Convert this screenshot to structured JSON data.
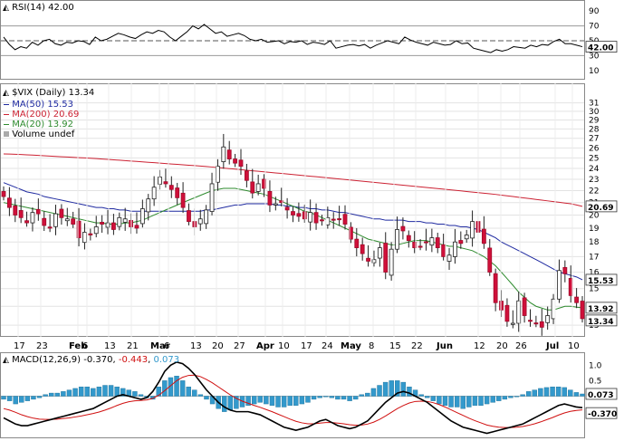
{
  "chart_data": [
    {
      "type": "line",
      "panel": "indicator",
      "label": "RSI(14)",
      "value": "42.00",
      "y_ticks": [
        90,
        70,
        50,
        30,
        10
      ],
      "reference_lines": [
        70,
        50,
        30
      ],
      "ylim": [
        0,
        100
      ],
      "series": [
        {
          "name": "RSI(14)",
          "color": "#000000",
          "values": [
            55,
            45,
            38,
            42,
            40,
            48,
            44,
            50,
            52,
            46,
            44,
            48,
            47,
            50,
            49,
            45,
            55,
            50,
            52,
            56,
            60,
            58,
            55,
            53,
            58,
            62,
            60,
            64,
            62,
            55,
            50,
            56,
            62,
            70,
            66,
            72,
            66,
            60,
            62,
            56,
            58,
            60,
            57,
            52,
            50,
            52,
            48,
            49,
            50,
            46,
            49,
            48,
            50,
            45,
            48,
            47,
            45,
            50,
            40,
            42,
            44,
            45,
            43,
            45,
            40,
            44,
            47,
            50,
            48,
            46,
            55,
            51,
            48,
            46,
            44,
            48,
            46,
            44,
            45,
            50,
            46,
            47,
            40,
            38,
            36,
            34,
            38,
            36,
            38,
            42,
            41,
            40,
            44,
            42,
            45,
            44,
            49,
            52,
            46,
            46,
            44,
            42
          ]
        }
      ]
    },
    {
      "type": "candlestick",
      "panel": "price",
      "label": "$VIX (Daily)",
      "last": "13.34",
      "y_scale": "log",
      "y_ticks": [
        31,
        30,
        29,
        28,
        27,
        26,
        25,
        24,
        23,
        22,
        21,
        20,
        19,
        18,
        17,
        16,
        15,
        14,
        13
      ],
      "ylim": [
        12.6,
        33
      ],
      "x_tick_labels": [
        "17",
        "23",
        "Feb",
        "6",
        "13",
        "21",
        "Mar",
        "6",
        "13",
        "20",
        "27",
        "Apr",
        "10",
        "17",
        "24",
        "May",
        "8",
        "15",
        "22",
        "Jun",
        "12",
        "20",
        "26",
        "Jul",
        "10"
      ],
      "overlays": [
        {
          "name": "MA(50)",
          "value": "15.53",
          "color": "#1f2aa0",
          "badge": "15.53"
        },
        {
          "name": "MA(200)",
          "value": "20.69",
          "color": "#cc2233",
          "badge": "20.69"
        },
        {
          "name": "MA(20)",
          "value": "13.92",
          "color": "#2e8b2e",
          "badge": "13.92"
        }
      ],
      "volume_legend": "Volume undef",
      "close_badge": "13.34",
      "close": [
        21.5,
        20.6,
        20.0,
        19.8,
        19.4,
        20.2,
        20.1,
        19.2,
        19.0,
        20.1,
        19.8,
        19.7,
        19.3,
        18.3,
        18.7,
        18.5,
        19.1,
        19.3,
        19.4,
        18.9,
        19.8,
        19.7,
        19.1,
        19.0,
        20.5,
        21.3,
        22.3,
        23.2,
        22.6,
        22.1,
        21.4,
        20.6,
        19.5,
        19.1,
        19.7,
        20.4,
        22.6,
        24.2,
        26.1,
        24.9,
        24.5,
        24.2,
        22.9,
        21.8,
        22.6,
        22.2,
        20.8,
        20.9,
        21.0,
        20.4,
        20.0,
        19.9,
        19.7,
        20.2,
        19.4,
        19.6,
        19.8,
        19.6,
        19.7,
        19.3,
        18.2,
        17.6,
        17.2,
        16.7,
        16.8,
        17.6,
        16.0,
        17.5,
        18.9,
        18.8,
        18.1,
        17.6,
        17.7,
        18.0,
        18.3,
        17.6,
        17.0,
        17.1,
        18.0,
        17.9,
        18.5,
        19.5,
        18.7,
        17.9,
        16.0,
        14.2,
        13.8,
        13.2,
        13.1,
        14.3,
        13.5,
        13.2,
        13.1,
        12.9,
        13.5,
        14.4,
        16.1,
        15.9,
        14.6,
        14.2,
        13.34
      ],
      "ma50": [
        22.7,
        22.5,
        22.3,
        22.1,
        21.9,
        21.8,
        21.7,
        21.5,
        21.4,
        21.3,
        21.2,
        21.1,
        21.0,
        20.9,
        20.8,
        20.7,
        20.6,
        20.6,
        20.5,
        20.5,
        20.4,
        20.4,
        20.3,
        20.3,
        20.3,
        20.3,
        20.3,
        20.3,
        20.3,
        20.3,
        20.3,
        20.3,
        20.3,
        20.3,
        20.3,
        20.4,
        20.4,
        20.5,
        20.6,
        20.7,
        20.8,
        20.8,
        20.9,
        20.9,
        20.9,
        20.9,
        20.9,
        20.8,
        20.8,
        20.7,
        20.7,
        20.6,
        20.6,
        20.5,
        20.5,
        20.4,
        20.4,
        20.3,
        20.2,
        20.2,
        20.1,
        20.0,
        19.9,
        19.8,
        19.7,
        19.7,
        19.6,
        19.6,
        19.6,
        19.6,
        19.5,
        19.5,
        19.5,
        19.4,
        19.4,
        19.3,
        19.3,
        19.2,
        19.2,
        19.1,
        19.1,
        19.0,
        18.9,
        18.7,
        18.5,
        18.3,
        18.0,
        17.8,
        17.6,
        17.4,
        17.2,
        17.0,
        16.8,
        16.6,
        16.4,
        16.2,
        16.0,
        15.9,
        15.8,
        15.7,
        15.53
      ],
      "ma200": [
        25.4,
        25.38,
        25.36,
        25.34,
        25.31,
        25.28,
        25.25,
        25.22,
        25.18,
        25.15,
        25.12,
        25.09,
        25.06,
        25.03,
        25.0,
        24.97,
        24.94,
        24.9,
        24.86,
        24.82,
        24.78,
        24.74,
        24.7,
        24.66,
        24.62,
        24.58,
        24.54,
        24.5,
        24.46,
        24.42,
        24.38,
        24.34,
        24.3,
        24.26,
        24.22,
        24.18,
        24.13,
        24.08,
        24.03,
        23.98,
        23.93,
        23.88,
        23.83,
        23.78,
        23.73,
        23.68,
        23.63,
        23.58,
        23.53,
        23.48,
        23.43,
        23.38,
        23.33,
        23.28,
        23.23,
        23.18,
        23.13,
        23.08,
        23.03,
        22.98,
        22.93,
        22.88,
        22.83,
        22.78,
        22.73,
        22.68,
        22.63,
        22.58,
        22.53,
        22.48,
        22.43,
        22.38,
        22.33,
        22.28,
        22.23,
        22.18,
        22.13,
        22.08,
        22.03,
        21.98,
        21.93,
        21.88,
        21.83,
        21.78,
        21.73,
        21.68,
        21.62,
        21.56,
        21.5,
        21.44,
        21.38,
        21.32,
        21.26,
        21.2,
        21.14,
        21.08,
        21.02,
        20.96,
        20.9,
        20.8,
        20.69
      ],
      "ma20": [
        21.0,
        20.9,
        20.8,
        20.7,
        20.6,
        20.5,
        20.4,
        20.3,
        20.2,
        20.1,
        20.0,
        19.9,
        19.8,
        19.7,
        19.6,
        19.5,
        19.4,
        19.4,
        19.3,
        19.3,
        19.3,
        19.4,
        19.4,
        19.5,
        19.6,
        19.8,
        20.0,
        20.2,
        20.4,
        20.6,
        20.8,
        21.0,
        21.2,
        21.4,
        21.6,
        21.8,
        22.0,
        22.1,
        22.2,
        22.2,
        22.2,
        22.1,
        22.0,
        21.9,
        21.8,
        21.7,
        21.5,
        21.3,
        21.1,
        20.9,
        20.7,
        20.5,
        20.3,
        20.2,
        20.0,
        19.8,
        19.6,
        19.4,
        19.2,
        19.0,
        18.8,
        18.6,
        18.4,
        18.2,
        18.1,
        18.0,
        17.9,
        17.8,
        17.8,
        17.9,
        18.0,
        18.1,
        18.1,
        18.1,
        18.0,
        17.9,
        17.8,
        17.7,
        17.7,
        17.6,
        17.5,
        17.4,
        17.2,
        17.0,
        16.7,
        16.4,
        16.0,
        15.6,
        15.2,
        14.8,
        14.5,
        14.2,
        14.0,
        13.9,
        13.8,
        13.8,
        13.9,
        14.0,
        14.0,
        13.95,
        13.92
      ]
    },
    {
      "type": "combo",
      "panel": "indicator",
      "label": "MACD(12,26,9)",
      "values_text": {
        "macd": "-0.370",
        "signal": "-0.443",
        "histogram": "0.073"
      },
      "y_ticks": [
        "1.0",
        "0.5",
        "-0.5"
      ],
      "ylim": [
        -1.3,
        1.3
      ],
      "series": [
        {
          "name": "MACD",
          "color": "#000000",
          "badge": "-0.370",
          "values": [
            -0.7,
            -0.8,
            -0.9,
            -0.95,
            -0.95,
            -0.9,
            -0.85,
            -0.8,
            -0.75,
            -0.7,
            -0.65,
            -0.6,
            -0.55,
            -0.5,
            -0.45,
            -0.4,
            -0.3,
            -0.2,
            -0.1,
            0.0,
            0.05,
            0.0,
            -0.05,
            -0.1,
            -0.05,
            0.15,
            0.45,
            0.8,
            1.0,
            1.1,
            1.05,
            0.9,
            0.7,
            0.45,
            0.2,
            0.0,
            -0.2,
            -0.35,
            -0.45,
            -0.5,
            -0.5,
            -0.5,
            -0.55,
            -0.6,
            -0.7,
            -0.8,
            -0.9,
            -1.0,
            -1.05,
            -1.1,
            -1.05,
            -1.0,
            -0.9,
            -0.8,
            -0.75,
            -0.85,
            -0.95,
            -1.0,
            -1.05,
            -1.0,
            -0.9,
            -0.8,
            -0.6,
            -0.4,
            -0.2,
            -0.05,
            0.1,
            0.15,
            0.1,
            0.0,
            -0.1,
            -0.2,
            -0.35,
            -0.5,
            -0.65,
            -0.8,
            -0.9,
            -1.0,
            -1.05,
            -1.1,
            -1.15,
            -1.2,
            -1.15,
            -1.1,
            -1.05,
            -1.0,
            -0.95,
            -0.9,
            -0.8,
            -0.7,
            -0.6,
            -0.5,
            -0.4,
            -0.3,
            -0.25,
            -0.3,
            -0.35,
            -0.37
          ]
        },
        {
          "name": "Signal",
          "color": "#d01010",
          "badge": "-0.443",
          "values": [
            -0.4,
            -0.45,
            -0.52,
            -0.6,
            -0.66,
            -0.71,
            -0.74,
            -0.75,
            -0.75,
            -0.74,
            -0.72,
            -0.7,
            -0.67,
            -0.64,
            -0.6,
            -0.56,
            -0.51,
            -0.45,
            -0.38,
            -0.3,
            -0.23,
            -0.18,
            -0.15,
            -0.14,
            -0.12,
            -0.07,
            0.03,
            0.18,
            0.34,
            0.5,
            0.61,
            0.67,
            0.68,
            0.63,
            0.54,
            0.43,
            0.3,
            0.17,
            0.04,
            -0.07,
            -0.16,
            -0.23,
            -0.3,
            -0.36,
            -0.43,
            -0.5,
            -0.58,
            -0.66,
            -0.74,
            -0.81,
            -0.86,
            -0.89,
            -0.89,
            -0.87,
            -0.85,
            -0.85,
            -0.87,
            -0.89,
            -0.92,
            -0.94,
            -0.93,
            -0.9,
            -0.84,
            -0.75,
            -0.64,
            -0.52,
            -0.4,
            -0.3,
            -0.22,
            -0.17,
            -0.16,
            -0.17,
            -0.21,
            -0.27,
            -0.35,
            -0.44,
            -0.53,
            -0.62,
            -0.71,
            -0.79,
            -0.86,
            -0.93,
            -0.97,
            -1.0,
            -1.01,
            -1.01,
            -1.0,
            -0.98,
            -0.94,
            -0.89,
            -0.83,
            -0.76,
            -0.69,
            -0.61,
            -0.54,
            -0.49,
            -0.46,
            -0.443
          ]
        },
        {
          "name": "Histogram",
          "color": "#3399cc",
          "badge": "0.073",
          "values": [
            -0.1,
            -0.15,
            -0.25,
            -0.2,
            -0.15,
            -0.1,
            -0.05,
            0.05,
            0.1,
            0.1,
            0.15,
            0.2,
            0.25,
            0.3,
            0.3,
            0.25,
            0.3,
            0.35,
            0.35,
            0.3,
            0.25,
            0.2,
            0.15,
            0.05,
            -0.05,
            -0.1,
            0.3,
            0.5,
            0.6,
            0.65,
            0.5,
            0.3,
            0.2,
            0.05,
            -0.1,
            -0.25,
            -0.4,
            -0.5,
            -0.45,
            -0.4,
            -0.35,
            -0.3,
            -0.25,
            -0.2,
            -0.25,
            -0.3,
            -0.35,
            -0.35,
            -0.3,
            -0.3,
            -0.25,
            -0.2,
            -0.1,
            -0.05,
            0.0,
            -0.05,
            -0.1,
            -0.1,
            -0.15,
            -0.1,
            0.05,
            0.1,
            0.25,
            0.35,
            0.45,
            0.5,
            0.5,
            0.45,
            0.3,
            0.2,
            0.05,
            -0.05,
            -0.15,
            -0.25,
            -0.3,
            -0.35,
            -0.35,
            -0.4,
            -0.35,
            -0.3,
            -0.3,
            -0.25,
            -0.2,
            -0.15,
            -0.1,
            -0.05,
            0.0,
            0.05,
            0.15,
            0.2,
            0.25,
            0.28,
            0.3,
            0.3,
            0.28,
            0.2,
            0.12,
            0.073
          ]
        }
      ]
    }
  ]
}
